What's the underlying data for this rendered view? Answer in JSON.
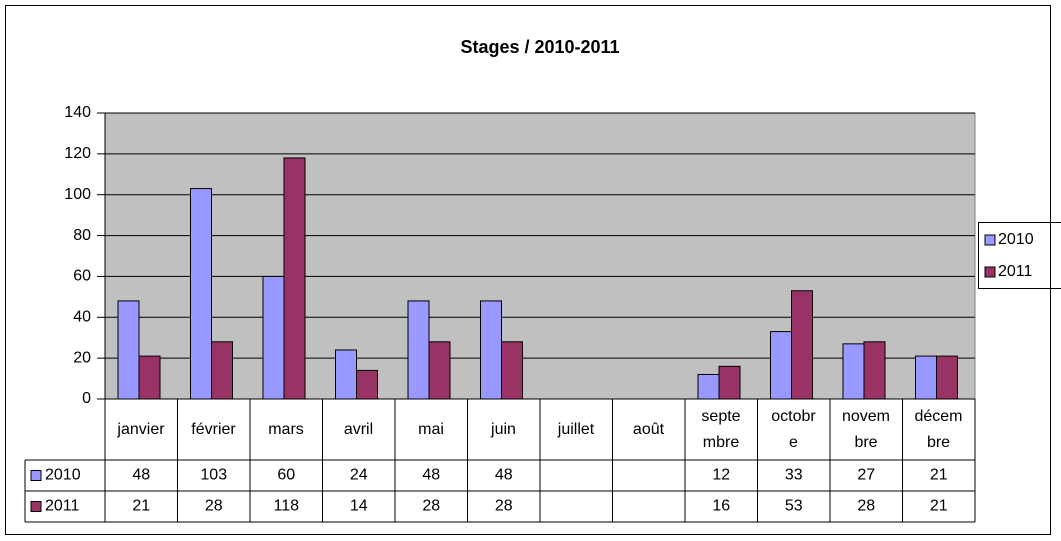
{
  "chart_data": {
    "type": "bar",
    "title": "Stages / 2010-2011",
    "categories": [
      "janvier",
      "février",
      "mars",
      "avril",
      "mai",
      "juin",
      "juillet",
      "août",
      "septembre",
      "octobre",
      "novembre",
      "décembre"
    ],
    "series": [
      {
        "name": "2010",
        "color": "#9999ff",
        "values": [
          48,
          103,
          60,
          24,
          48,
          48,
          null,
          null,
          12,
          33,
          27,
          21
        ]
      },
      {
        "name": "2011",
        "color": "#993366",
        "values": [
          21,
          28,
          118,
          14,
          28,
          28,
          null,
          null,
          16,
          53,
          28,
          21
        ]
      }
    ],
    "ylim": [
      0,
      140
    ],
    "yticks": [
      0,
      20,
      40,
      60,
      80,
      100,
      120,
      140
    ],
    "grid": true,
    "legend": "right",
    "plot_background": "#c0c0c0"
  }
}
